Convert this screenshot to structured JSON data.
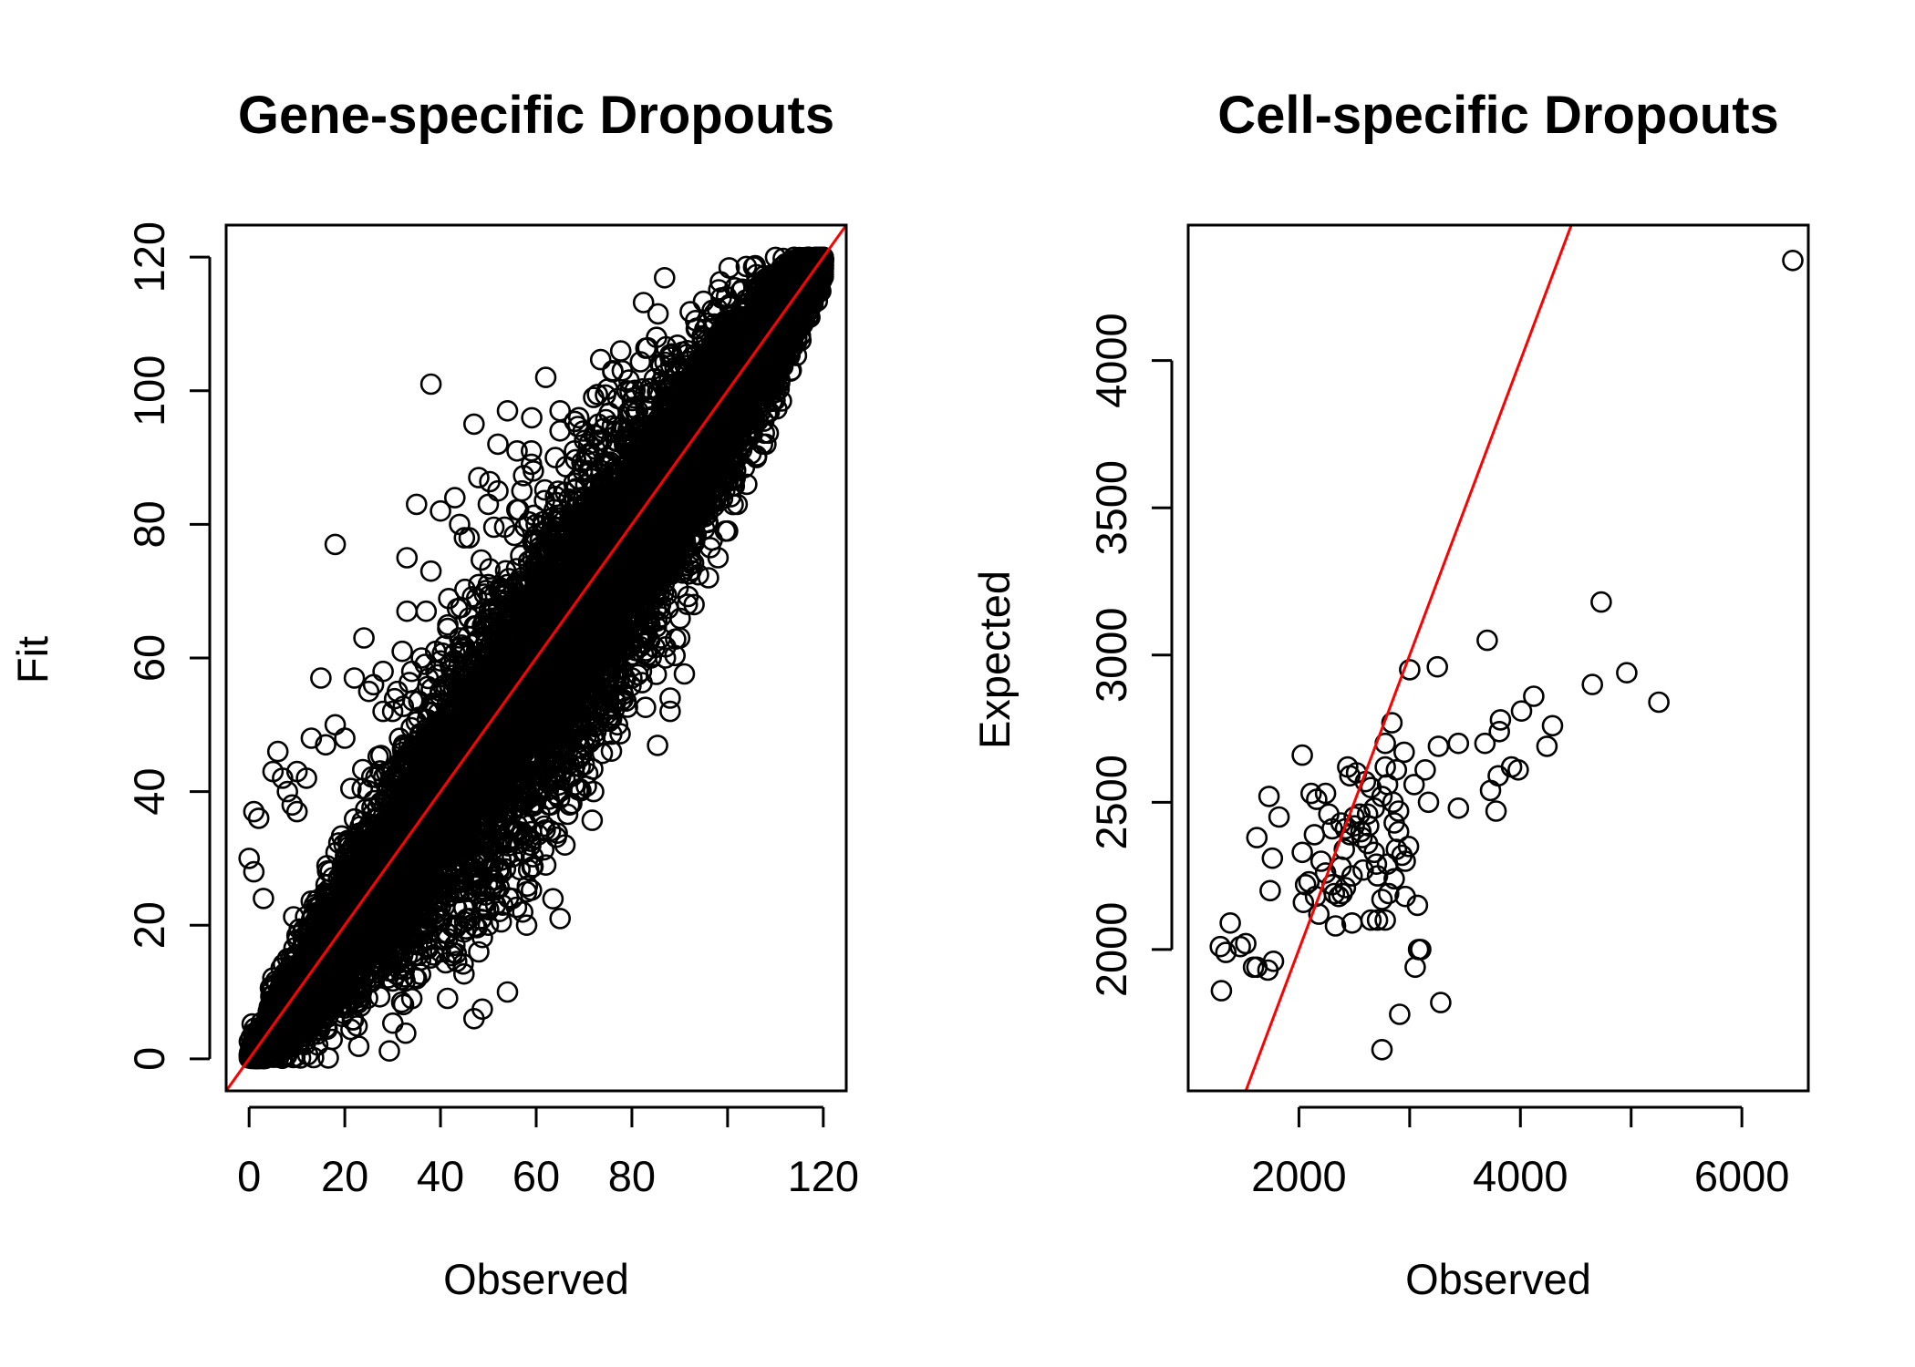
{
  "chart_data": [
    {
      "type": "scatter",
      "title": "Gene-specific Dropouts",
      "xlabel": "Observed",
      "ylabel": "Fit",
      "xlim": [
        -4.8,
        124.8
      ],
      "ylim": [
        -4.8,
        124.8
      ],
      "xticks": [
        0,
        20,
        40,
        60,
        80,
        120
      ],
      "yticks": [
        0,
        20,
        40,
        60,
        80,
        100,
        120
      ],
      "xtick_labels": [
        "0",
        "20",
        "40",
        "60",
        "80",
        "120"
      ],
      "ytick_labels": [
        "0",
        "20",
        "40",
        "60",
        "80",
        "100",
        "120"
      ],
      "marker": "open-circle",
      "point_color": "#000000",
      "reference_line": {
        "slope": 1,
        "intercept": 0,
        "color": "#ff0000"
      },
      "grid": false,
      "legend": "none",
      "dense_band": {
        "x_range": [
          0,
          121
        ],
        "description_slope": 1,
        "approx_points": 10000
      },
      "points": [
        [
          18,
          77
        ],
        [
          38,
          101
        ],
        [
          62,
          102
        ],
        [
          47,
          95
        ],
        [
          54,
          97
        ],
        [
          65,
          97
        ],
        [
          72,
          99
        ],
        [
          79,
          100
        ],
        [
          76,
          103
        ],
        [
          33,
          75
        ],
        [
          35,
          83
        ],
        [
          48,
          87
        ],
        [
          40,
          82
        ],
        [
          43,
          84
        ],
        [
          52,
          85
        ],
        [
          45,
          78
        ],
        [
          46,
          78
        ],
        [
          38,
          73
        ],
        [
          52,
          92
        ],
        [
          56,
          91
        ],
        [
          64,
          90
        ],
        [
          68,
          91
        ],
        [
          71,
          92
        ],
        [
          65,
          94
        ],
        [
          73,
          95
        ],
        [
          83,
          92
        ],
        [
          86,
          93
        ],
        [
          87,
          100
        ],
        [
          88,
          105
        ],
        [
          78,
          103
        ],
        [
          57,
          85
        ],
        [
          60,
          80
        ],
        [
          61,
          76
        ],
        [
          63,
          72
        ],
        [
          64,
          79
        ],
        [
          33,
          67
        ],
        [
          32,
          61
        ],
        [
          28,
          58
        ],
        [
          25,
          55
        ],
        [
          22,
          57
        ],
        [
          15,
          57
        ],
        [
          16,
          47
        ],
        [
          13,
          48
        ],
        [
          20,
          48
        ],
        [
          18,
          50
        ],
        [
          12,
          42
        ],
        [
          10,
          43
        ],
        [
          6,
          46
        ],
        [
          5,
          43
        ],
        [
          7,
          42
        ],
        [
          8,
          40
        ],
        [
          9,
          38
        ],
        [
          10,
          37
        ],
        [
          1,
          37
        ],
        [
          2,
          36
        ],
        [
          0,
          30
        ],
        [
          1,
          28
        ],
        [
          3,
          24
        ],
        [
          24,
          63
        ],
        [
          26,
          56
        ],
        [
          28,
          52
        ],
        [
          30,
          52
        ],
        [
          31,
          55
        ],
        [
          34,
          58
        ],
        [
          36,
          60
        ],
        [
          39,
          61
        ],
        [
          42,
          59
        ],
        [
          41,
          56
        ],
        [
          44,
          63
        ],
        [
          46,
          66
        ],
        [
          48,
          71
        ],
        [
          50,
          71
        ],
        [
          37,
          67
        ],
        [
          50,
          83
        ],
        [
          44,
          80
        ],
        [
          59,
          89
        ],
        [
          59,
          91
        ],
        [
          66,
          79
        ],
        [
          68,
          75
        ],
        [
          70,
          80
        ],
        [
          60,
          74
        ],
        [
          54,
          71
        ],
        [
          41,
          35
        ],
        [
          45,
          29
        ],
        [
          48,
          27
        ],
        [
          50,
          32
        ],
        [
          53,
          40
        ],
        [
          56,
          42
        ],
        [
          58,
          40
        ],
        [
          60,
          44
        ],
        [
          62,
          44
        ],
        [
          64,
          43
        ],
        [
          66,
          42
        ],
        [
          68,
          41
        ],
        [
          71,
          48
        ],
        [
          73,
          51
        ],
        [
          74,
          53
        ],
        [
          77,
          50
        ],
        [
          78,
          55
        ],
        [
          80,
          57
        ],
        [
          82,
          58
        ],
        [
          84,
          60
        ],
        [
          86,
          63
        ],
        [
          87,
          60
        ],
        [
          88,
          52
        ],
        [
          88,
          54
        ],
        [
          90,
          63
        ],
        [
          93,
          68
        ],
        [
          96,
          72
        ],
        [
          98,
          75
        ],
        [
          100,
          79
        ],
        [
          102,
          83
        ],
        [
          104,
          86
        ],
        [
          106,
          90
        ],
        [
          108,
          92
        ],
        [
          46,
          21
        ],
        [
          50,
          20
        ],
        [
          55,
          24
        ],
        [
          58,
          25
        ],
        [
          62,
          29
        ],
        [
          66,
          32
        ],
        [
          53,
          23
        ],
        [
          59,
          34
        ],
        [
          65,
          21
        ],
        [
          47,
          6
        ],
        [
          54,
          10
        ],
        [
          48,
          16
        ],
        [
          34,
          9
        ],
        [
          35,
          12
        ],
        [
          40,
          16
        ],
        [
          43,
          17
        ],
        [
          58,
          20
        ],
        [
          45,
          25
        ],
        [
          49,
          23
        ],
        [
          51,
          29
        ],
        [
          56,
          35
        ],
        [
          63,
          38
        ],
        [
          67,
          38
        ],
        [
          70,
          47
        ],
        [
          75,
          51
        ],
        [
          69,
          45
        ],
        [
          72,
          40
        ]
      ]
    },
    {
      "type": "scatter",
      "title": "Cell-specific Dropouts",
      "xlabel": "Observed",
      "ylabel": "Expected",
      "xlim": [
        1000,
        6600
      ],
      "ylim": [
        1520,
        4460
      ],
      "xticks": [
        2000,
        4000,
        6000
      ],
      "yticks": [
        2000,
        2500,
        3000,
        3500,
        4000
      ],
      "xtick_labels": [
        "2000",
        "4000",
        "6000"
      ],
      "ytick_labels": [
        "2000",
        "2500",
        "3000",
        "3500",
        "4000"
      ],
      "marker": "open-circle",
      "point_color": "#000000",
      "reference_line": {
        "slope": 1,
        "intercept": 0,
        "color": "#ff0000"
      },
      "grid": false,
      "legend": "none",
      "points": [
        [
          6460,
          4340
        ],
        [
          4730,
          3180
        ],
        [
          3700,
          3050
        ],
        [
          4960,
          2940
        ],
        [
          4650,
          2900
        ],
        [
          5250,
          2840
        ],
        [
          4120,
          2860
        ],
        [
          3000,
          2950
        ],
        [
          3250,
          2960
        ],
        [
          2840,
          2770
        ],
        [
          2780,
          2700
        ],
        [
          2950,
          2670
        ],
        [
          3260,
          2690
        ],
        [
          3440,
          2700
        ],
        [
          3680,
          2700
        ],
        [
          3810,
          2740
        ],
        [
          3820,
          2780
        ],
        [
          4010,
          2810
        ],
        [
          4290,
          2760
        ],
        [
          4240,
          2690
        ],
        [
          3920,
          2620
        ],
        [
          3980,
          2610
        ],
        [
          3800,
          2590
        ],
        [
          3730,
          2540
        ],
        [
          3780,
          2470
        ],
        [
          3440,
          2480
        ],
        [
          3170,
          2500
        ],
        [
          3140,
          2610
        ],
        [
          3040,
          2560
        ],
        [
          2880,
          2610
        ],
        [
          2780,
          2620
        ],
        [
          2800,
          2560
        ],
        [
          2750,
          2520
        ],
        [
          2650,
          2550
        ],
        [
          2600,
          2570
        ],
        [
          2520,
          2600
        ],
        [
          2440,
          2620
        ],
        [
          2460,
          2590
        ],
        [
          2550,
          2460
        ],
        [
          2500,
          2420
        ],
        [
          2460,
          2390
        ],
        [
          2420,
          2410
        ],
        [
          2380,
          2430
        ],
        [
          2300,
          2410
        ],
        [
          2270,
          2460
        ],
        [
          2240,
          2530
        ],
        [
          2160,
          2510
        ],
        [
          2110,
          2530
        ],
        [
          2030,
          2660
        ],
        [
          1730,
          2520
        ],
        [
          1820,
          2450
        ],
        [
          1620,
          2380
        ],
        [
          1760,
          2310
        ],
        [
          2030,
          2330
        ],
        [
          2140,
          2390
        ],
        [
          2200,
          2300
        ],
        [
          2240,
          2260
        ],
        [
          2300,
          2220
        ],
        [
          2320,
          2190
        ],
        [
          2360,
          2180
        ],
        [
          2390,
          2190
        ],
        [
          2420,
          2210
        ],
        [
          2480,
          2250
        ],
        [
          2580,
          2270
        ],
        [
          2700,
          2290
        ],
        [
          2800,
          2290
        ],
        [
          2880,
          2340
        ],
        [
          2930,
          2320
        ],
        [
          2960,
          2300
        ],
        [
          2990,
          2350
        ],
        [
          2900,
          2400
        ],
        [
          2860,
          2430
        ],
        [
          2900,
          2470
        ],
        [
          2850,
          2500
        ],
        [
          2680,
          2480
        ],
        [
          2630,
          2420
        ],
        [
          2570,
          2380
        ],
        [
          2560,
          2400
        ],
        [
          2620,
          2360
        ],
        [
          2680,
          2330
        ],
        [
          2710,
          2250
        ],
        [
          2750,
          2170
        ],
        [
          2810,
          2190
        ],
        [
          2780,
          2100
        ],
        [
          2710,
          2100
        ],
        [
          2650,
          2100
        ],
        [
          2480,
          2090
        ],
        [
          2330,
          2080
        ],
        [
          2180,
          2120
        ],
        [
          2150,
          2180
        ],
        [
          2090,
          2230
        ],
        [
          2060,
          2220
        ],
        [
          2040,
          2160
        ],
        [
          1740,
          2200
        ],
        [
          1380,
          2090
        ],
        [
          1290,
          2010
        ],
        [
          1340,
          1990
        ],
        [
          1470,
          2010
        ],
        [
          1520,
          2020
        ],
        [
          1590,
          1940
        ],
        [
          1620,
          1940
        ],
        [
          1720,
          1930
        ],
        [
          1770,
          1960
        ],
        [
          1300,
          1860
        ],
        [
          2910,
          1780
        ],
        [
          2750,
          1660
        ],
        [
          3280,
          1820
        ],
        [
          3050,
          1940
        ],
        [
          3080,
          2000
        ],
        [
          3100,
          2000
        ],
        [
          3070,
          2150
        ],
        [
          2960,
          2180
        ],
        [
          2860,
          2240
        ],
        [
          2620,
          2460
        ],
        [
          2500,
          2450
        ],
        [
          2410,
          2340
        ],
        [
          2380,
          2280
        ]
      ]
    }
  ]
}
